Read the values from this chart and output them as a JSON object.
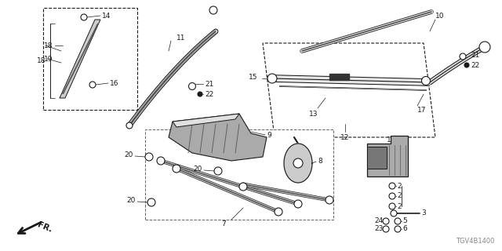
{
  "bg_color": "#ffffff",
  "diagram_code": "TGV4B1400",
  "dark": "#1a1a1a",
  "gray": "#888888",
  "fs": 6.5
}
